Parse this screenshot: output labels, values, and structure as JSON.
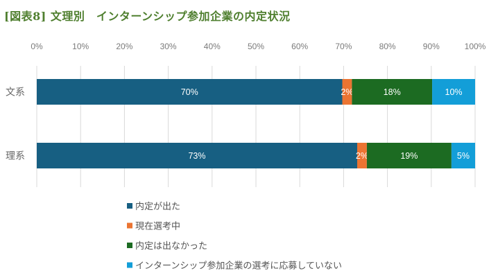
{
  "chart_data": {
    "type": "bar",
    "orientation": "horizontal",
    "stacked": "percent",
    "title": "[図表8] 文理別　インターンシップ参加企業の内定状況",
    "categories": [
      "文系",
      "理系"
    ],
    "xlim": [
      0,
      100
    ],
    "x_ticks": [
      "0%",
      "10%",
      "20%",
      "30%",
      "40%",
      "50%",
      "60%",
      "70%",
      "80%",
      "90%",
      "100%"
    ],
    "grid": "vertical",
    "legend_position": "bottom",
    "series": [
      {
        "name": "内定が出た",
        "color": "#175f82",
        "values": [
          69.7,
          73.1
        ],
        "labels": [
          "70%",
          "73%"
        ]
      },
      {
        "name": "現在選考中",
        "color": "#eb7432",
        "values": [
          2.2,
          2.2
        ],
        "labels": [
          "2%",
          "2%"
        ]
      },
      {
        "name": "内定は出なかった",
        "color": "#1c6b22",
        "values": [
          18.3,
          19.3
        ],
        "labels": [
          "18%",
          "19%"
        ]
      },
      {
        "name": "インターンシップ参加企業の選考に応募していない",
        "color": "#139ed8",
        "values": [
          9.8,
          5.4
        ],
        "labels": [
          "10%",
          "5%"
        ]
      }
    ]
  }
}
